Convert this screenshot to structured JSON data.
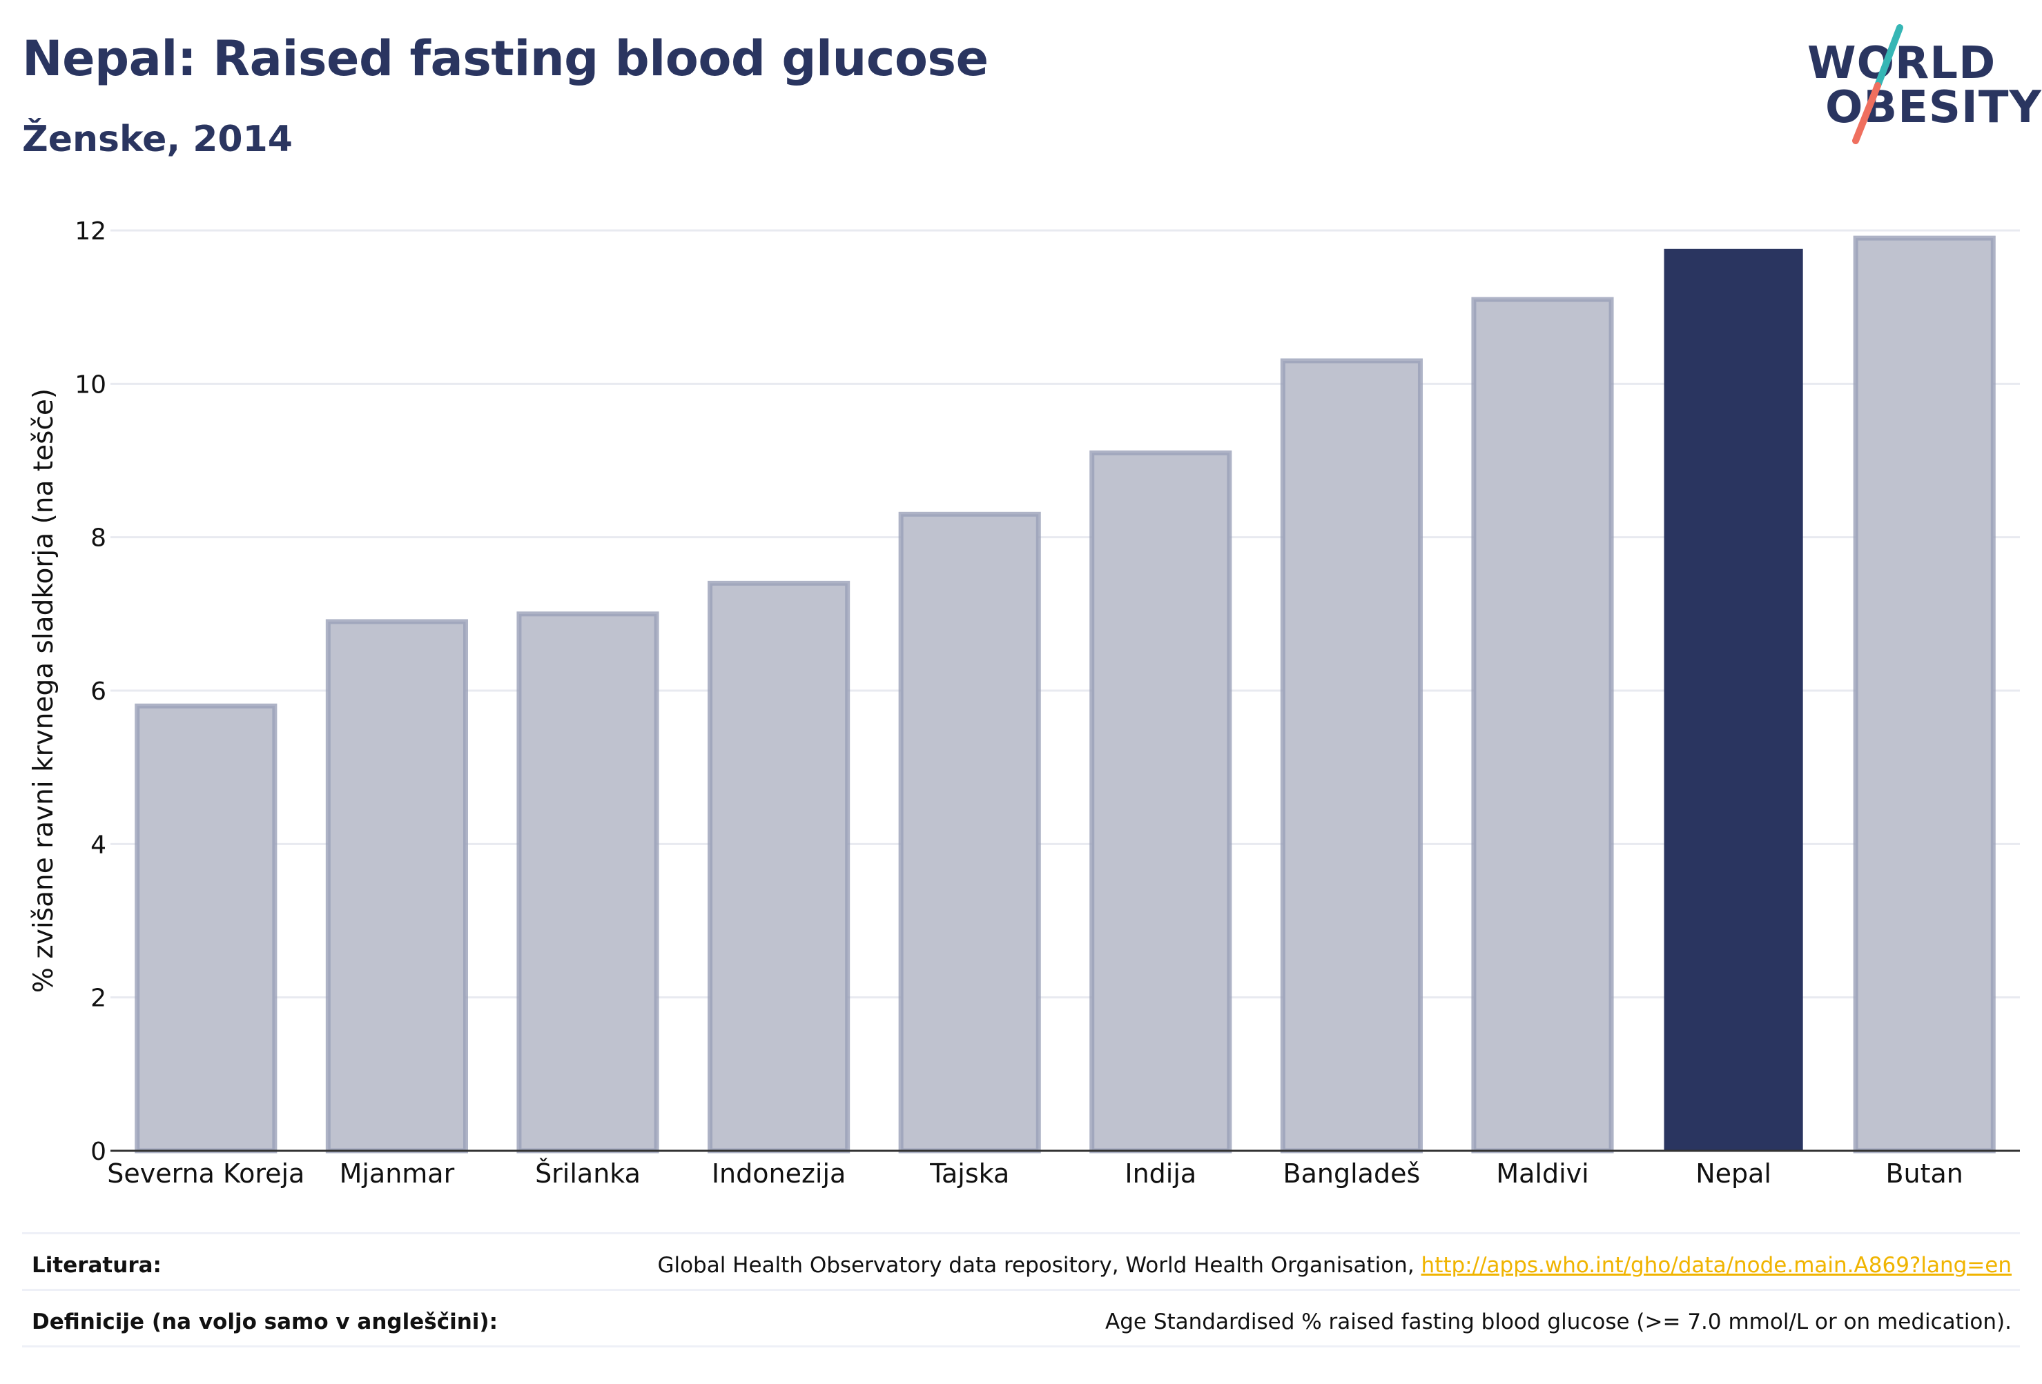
{
  "header": {
    "title": "Nepal: Raised fasting blood glucose",
    "subtitle": "Ženske, 2014"
  },
  "logo": {
    "line1": "WORLD",
    "line2": "OBESITY",
    "colors": {
      "text": "#2a3560",
      "slash_top": "#36b6b5",
      "slash_bottom": "#ef6f5e"
    }
  },
  "chart_data": {
    "type": "bar",
    "ylabel": "% zvišane ravni krvnega sladkorja (na tešče)",
    "xlabel": "",
    "ylim": [
      0,
      12
    ],
    "yticks": [
      0,
      2,
      4,
      6,
      8,
      10,
      12
    ],
    "grid": true,
    "categories": [
      "Severna Koreja",
      "Mjanmar",
      "Šrilanka",
      "Indonezija",
      "Tajska",
      "Indija",
      "Bangladeš",
      "Maldivi",
      "Nepal",
      "Butan"
    ],
    "values": [
      5.8,
      6.9,
      7.0,
      7.4,
      8.3,
      9.1,
      10.3,
      11.1,
      11.75,
      11.9
    ],
    "highlight": "Nepal",
    "colors": {
      "bar_fill": "#bfc2cf",
      "bar_stroke": "#9aa0b8",
      "highlight_fill": "#2a3560",
      "grid": "#e8eaf0",
      "axis": "#333333"
    }
  },
  "footer": {
    "sources_label": "Literatura:",
    "sources_text": "Global Health Observatory data repository, World Health Organisation, ",
    "sources_link": "http://apps.who.int/gho/data/node.main.A869?lang=en",
    "definitions_label": "Definicije (na voljo samo v angleščini):",
    "definitions_text": "Age Standardised % raised fasting blood glucose (>= 7.0 mmol/L or on medication)."
  }
}
